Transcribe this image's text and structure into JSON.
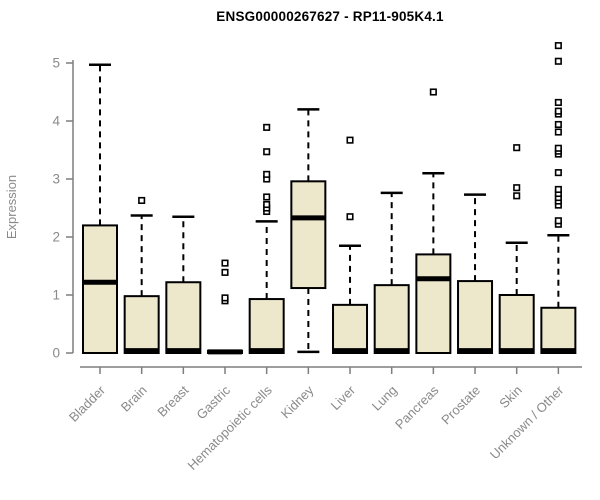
{
  "chart_data": {
    "type": "boxplot",
    "title": "ENSG00000267627 - RP11-905K4.1",
    "ylabel": "Expression",
    "xlabel": "",
    "ylim": [
      0,
      5.35
    ],
    "yticks": [
      0,
      1,
      2,
      3,
      4,
      5
    ],
    "grid": false,
    "legend": "none",
    "categories": [
      "Bladder",
      "Brain",
      "Breast",
      "Gastric",
      "Hematopoietic cells",
      "Kidney",
      "Liver",
      "Lung",
      "Pancreas",
      "Prostate",
      "Skin",
      "Unknown / Other"
    ],
    "boxes": [
      {
        "category": "Bladder",
        "whisker_low": 0,
        "q1": 0,
        "median": 1.22,
        "q3": 2.2,
        "whisker_high": 4.97,
        "outliers": []
      },
      {
        "category": "Brain",
        "whisker_low": 0,
        "q1": 0,
        "median": 0.04,
        "q3": 0.98,
        "whisker_high": 2.37,
        "outliers": [
          2.63
        ]
      },
      {
        "category": "Breast",
        "whisker_low": 0,
        "q1": 0,
        "median": 0.04,
        "q3": 1.22,
        "whisker_high": 2.35,
        "outliers": []
      },
      {
        "category": "Gastric",
        "whisker_low": 0,
        "q1": 0,
        "median": 0.02,
        "q3": 0.04,
        "whisker_high": 0.04,
        "outliers": [
          0.9,
          0.95,
          1.39,
          1.55
        ]
      },
      {
        "category": "Hematopoietic cells",
        "whisker_low": 0,
        "q1": 0,
        "median": 0.04,
        "q3": 0.93,
        "whisker_high": 2.27,
        "outliers": [
          2.44,
          2.5,
          2.56,
          2.69,
          3.0,
          3.08,
          3.47,
          3.89
        ]
      },
      {
        "category": "Kidney",
        "whisker_low": 0.02,
        "q1": 1.12,
        "median": 2.33,
        "q3": 2.96,
        "whisker_high": 4.2,
        "outliers": []
      },
      {
        "category": "Liver",
        "whisker_low": 0,
        "q1": 0,
        "median": 0.04,
        "q3": 0.83,
        "whisker_high": 1.85,
        "outliers": [
          2.35,
          3.67
        ]
      },
      {
        "category": "Lung",
        "whisker_low": 0,
        "q1": 0,
        "median": 0.04,
        "q3": 1.17,
        "whisker_high": 2.76,
        "outliers": []
      },
      {
        "category": "Pancreas",
        "whisker_low": 0,
        "q1": 0,
        "median": 1.28,
        "q3": 1.7,
        "whisker_high": 3.1,
        "outliers": [
          4.5
        ]
      },
      {
        "category": "Prostate",
        "whisker_low": 0,
        "q1": 0,
        "median": 0.04,
        "q3": 1.24,
        "whisker_high": 2.73,
        "outliers": []
      },
      {
        "category": "Skin",
        "whisker_low": 0,
        "q1": 0,
        "median": 0.04,
        "q3": 1.0,
        "whisker_high": 1.9,
        "outliers": [
          2.71,
          2.85,
          3.54
        ]
      },
      {
        "category": "Unknown / Other",
        "whisker_low": 0,
        "q1": 0,
        "median": 0.04,
        "q3": 0.78,
        "whisker_high": 2.03,
        "outliers": [
          2.22,
          2.28,
          2.55,
          2.62,
          2.68,
          2.75,
          2.82,
          3.11,
          3.43,
          3.48,
          3.53,
          3.81,
          3.94,
          4.12,
          4.17,
          4.32,
          5.03,
          5.3
        ]
      }
    ],
    "colors": {
      "box_fill": "#EDE7CB",
      "box_border": "#000000",
      "median": "#000000",
      "whisker": "#000000",
      "outlier_fill": "#ffffff",
      "axis_line": "#7e7e7e",
      "axis_text": "#8a8a8a",
      "title_text": "#000000"
    }
  }
}
